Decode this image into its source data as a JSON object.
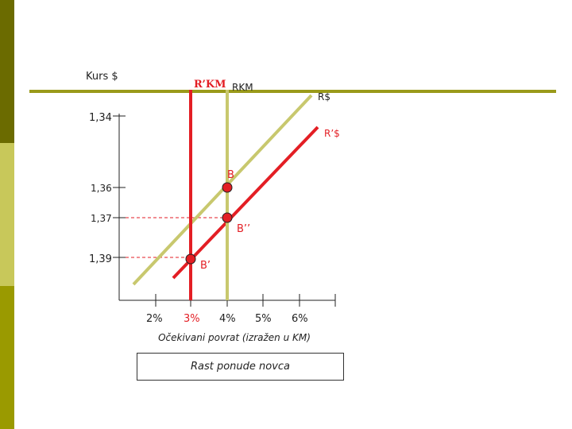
{
  "axis": {
    "y_title": "Kurs $",
    "y_ticks": [
      "1,34",
      "1,36",
      "1,37",
      "1,39"
    ],
    "x_ticks": [
      "2%",
      "3%",
      "4%",
      "5%",
      "6%"
    ],
    "x_title": "Očekivani povrat (izražen u KM)"
  },
  "curves": {
    "r_km_prime": "R’KM",
    "r_km": "RKM",
    "r_usd": "R$",
    "r_usd_prime": "R’$"
  },
  "points": {
    "b": "B",
    "b_double_prime": "B’’",
    "b_prime": "B’"
  },
  "caption": "Rast ponude novca",
  "colors": {
    "red": "#e31e24",
    "olive": "#c8c86e",
    "accent": "#9a9a1a"
  }
}
